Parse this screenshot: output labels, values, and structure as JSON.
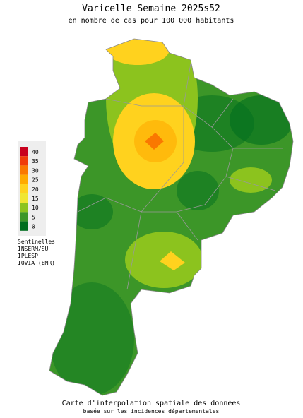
{
  "title": "Varicelle Semaine 2025s52",
  "subtitle": "en nombre de cas pour 100 000 habitants",
  "legend": [
    {
      "value": 40,
      "color": "#c8001e"
    },
    {
      "value": 35,
      "color": "#f03c0a"
    },
    {
      "value": 30,
      "color": "#fa7800"
    },
    {
      "value": 25,
      "color": "#ffaa00"
    },
    {
      "value": 20,
      "color": "#ffd21e"
    },
    {
      "value": 15,
      "color": "#f0e632"
    },
    {
      "value": 10,
      "color": "#8cc31e"
    },
    {
      "value": 5,
      "color": "#3c9628"
    },
    {
      "value": 0,
      "color": "#006e1e"
    }
  ],
  "sources": [
    "Sentinelles",
    "INSERM/SU",
    "IPLESP",
    "IQVIA (EMR)"
  ],
  "footer": {
    "title": "Carte d'interpolation spatiale des données",
    "note": "basée sur les incidences départementales"
  }
}
